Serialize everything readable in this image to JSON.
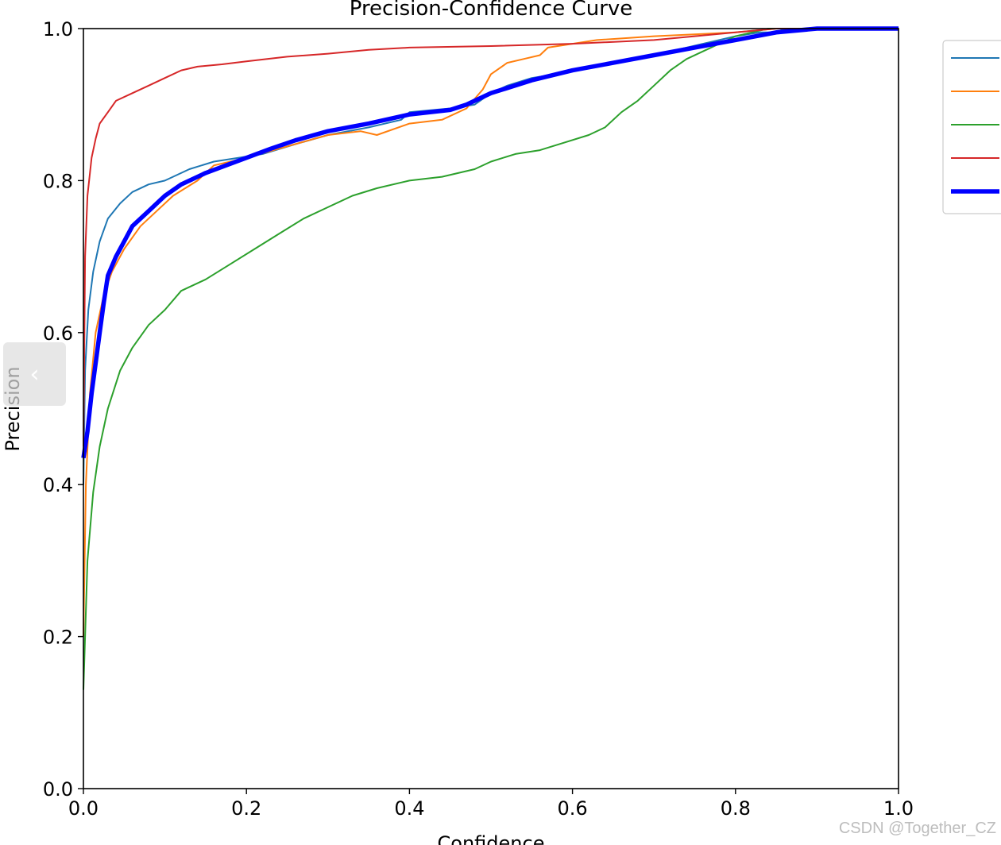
{
  "viewer": {
    "prev_arrow": "‹",
    "watermark": "CSDN @Together_CZ"
  },
  "chart_data": {
    "type": "line",
    "title": "Precision-Confidence Curve",
    "xlabel": "Confidence",
    "ylabel": "Precision",
    "xlim": [
      0,
      1
    ],
    "ylim": [
      0,
      1
    ],
    "xticks": [
      "0.0",
      "0.2",
      "0.4",
      "0.6",
      "0.8",
      "1.0"
    ],
    "yticks": [
      "0.0",
      "0.2",
      "0.4",
      "0.6",
      "0.8",
      "1.0"
    ],
    "grid": false,
    "legend": "right, entry labels outside the visible area",
    "series": [
      {
        "color": "#1f77b4",
        "width": 2,
        "x": [
          0.0,
          0.002,
          0.006,
          0.012,
          0.02,
          0.03,
          0.045,
          0.06,
          0.08,
          0.1,
          0.13,
          0.16,
          0.19,
          0.22,
          0.26,
          0.3,
          0.35,
          0.39,
          0.4,
          0.45,
          0.48,
          0.5,
          0.52,
          0.55,
          0.58,
          0.6,
          0.62,
          0.65,
          0.68,
          0.72,
          0.76,
          0.8,
          0.83,
          0.85,
          0.86,
          0.9,
          1.0
        ],
        "y": [
          0.4,
          0.55,
          0.63,
          0.68,
          0.72,
          0.75,
          0.77,
          0.785,
          0.795,
          0.8,
          0.815,
          0.825,
          0.83,
          0.835,
          0.848,
          0.86,
          0.87,
          0.88,
          0.89,
          0.895,
          0.9,
          0.915,
          0.925,
          0.935,
          0.94,
          0.945,
          0.95,
          0.955,
          0.96,
          0.97,
          0.98,
          0.99,
          0.995,
          0.995,
          1.0,
          1.0,
          1.0
        ]
      },
      {
        "color": "#ff7f0e",
        "width": 2,
        "x": [
          0.0,
          0.003,
          0.008,
          0.015,
          0.025,
          0.035,
          0.05,
          0.07,
          0.09,
          0.11,
          0.14,
          0.16,
          0.2,
          0.25,
          0.3,
          0.34,
          0.36,
          0.4,
          0.44,
          0.47,
          0.49,
          0.5,
          0.52,
          0.54,
          0.56,
          0.57,
          0.6,
          0.63,
          0.7,
          0.8,
          0.85,
          1.0
        ],
        "y": [
          0.2,
          0.4,
          0.52,
          0.6,
          0.65,
          0.68,
          0.71,
          0.74,
          0.76,
          0.78,
          0.8,
          0.82,
          0.83,
          0.845,
          0.86,
          0.865,
          0.86,
          0.875,
          0.88,
          0.895,
          0.92,
          0.94,
          0.955,
          0.96,
          0.965,
          0.975,
          0.98,
          0.985,
          0.99,
          0.995,
          1.0,
          1.0
        ]
      },
      {
        "color": "#2ca02c",
        "width": 2,
        "x": [
          0.0,
          0.005,
          0.012,
          0.02,
          0.03,
          0.045,
          0.06,
          0.08,
          0.1,
          0.12,
          0.15,
          0.18,
          0.21,
          0.24,
          0.27,
          0.3,
          0.33,
          0.36,
          0.4,
          0.44,
          0.48,
          0.5,
          0.53,
          0.56,
          0.59,
          0.62,
          0.64,
          0.66,
          0.68,
          0.7,
          0.72,
          0.74,
          0.76,
          0.78,
          0.8,
          0.82,
          0.84,
          0.86,
          1.0
        ],
        "y": [
          0.13,
          0.3,
          0.39,
          0.45,
          0.5,
          0.55,
          0.58,
          0.61,
          0.63,
          0.655,
          0.67,
          0.69,
          0.71,
          0.73,
          0.75,
          0.765,
          0.78,
          0.79,
          0.8,
          0.805,
          0.815,
          0.825,
          0.835,
          0.84,
          0.85,
          0.86,
          0.87,
          0.89,
          0.905,
          0.925,
          0.945,
          0.96,
          0.97,
          0.98,
          0.99,
          0.995,
          1.0,
          1.0,
          1.0
        ]
      },
      {
        "color": "#d62728",
        "width": 2,
        "x": [
          0.0,
          0.002,
          0.005,
          0.01,
          0.015,
          0.02,
          0.03,
          0.04,
          0.06,
          0.08,
          0.1,
          0.12,
          0.14,
          0.17,
          0.2,
          0.25,
          0.3,
          0.35,
          0.4,
          0.5,
          0.6,
          0.7,
          0.75,
          0.8,
          0.85,
          1.0
        ],
        "y": [
          0.45,
          0.7,
          0.78,
          0.83,
          0.855,
          0.875,
          0.89,
          0.905,
          0.915,
          0.925,
          0.935,
          0.945,
          0.95,
          0.953,
          0.957,
          0.963,
          0.967,
          0.972,
          0.975,
          0.977,
          0.98,
          0.985,
          0.99,
          0.995,
          1.0,
          1.0
        ]
      },
      {
        "color": "#0000ff",
        "width": 5.5,
        "x": [
          0.0,
          0.005,
          0.01,
          0.015,
          0.02,
          0.025,
          0.03,
          0.04,
          0.05,
          0.06,
          0.08,
          0.1,
          0.12,
          0.15,
          0.18,
          0.2,
          0.23,
          0.26,
          0.3,
          0.35,
          0.4,
          0.45,
          0.47,
          0.5,
          0.55,
          0.6,
          0.65,
          0.7,
          0.75,
          0.8,
          0.85,
          0.9,
          1.0
        ],
        "y": [
          0.435,
          0.47,
          0.52,
          0.56,
          0.6,
          0.64,
          0.675,
          0.7,
          0.72,
          0.74,
          0.76,
          0.78,
          0.795,
          0.81,
          0.822,
          0.83,
          0.842,
          0.853,
          0.865,
          0.875,
          0.887,
          0.893,
          0.9,
          0.915,
          0.932,
          0.945,
          0.955,
          0.965,
          0.975,
          0.985,
          0.995,
          1.0,
          1.0
        ]
      }
    ]
  }
}
